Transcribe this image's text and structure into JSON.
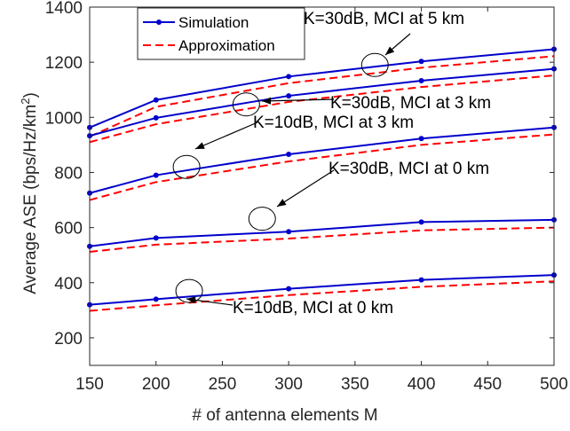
{
  "chart_data": {
    "type": "line",
    "xlabel": "# of antenna elements M",
    "ylabel_main": "Average ASE (bps/Hz/km",
    "ylabel_sup": "2",
    "ylabel_end": ")",
    "xlim": [
      150,
      500
    ],
    "ylim": [
      100,
      1400
    ],
    "xticks": [
      150,
      200,
      250,
      300,
      350,
      400,
      450,
      500
    ],
    "yticks": [
      200,
      400,
      600,
      800,
      1000,
      1200,
      1400
    ],
    "grid": false,
    "legend_position": "top-left",
    "legend": [
      {
        "label": "Simulation",
        "color": "#0000cc",
        "style": "solid-marker"
      },
      {
        "label": "Approximation",
        "color": "#ff0000",
        "style": "dashed"
      }
    ],
    "x": [
      150,
      200,
      300,
      400,
      500
    ],
    "series": [
      {
        "group": "K=30dB, MCI at 5 km",
        "simulation": [
          963,
          1063,
          1148,
          1203,
          1247
        ],
        "approximation": [
          930,
          1038,
          1124,
          1180,
          1222
        ]
      },
      {
        "group": "K=30dB, MCI at 3 km",
        "simulation": [
          933,
          998,
          1078,
          1133,
          1176
        ],
        "approximation": [
          910,
          975,
          1056,
          1110,
          1152
        ]
      },
      {
        "group": "K=10dB, MCI at 3 km",
        "simulation": [
          725,
          790,
          866,
          923,
          963
        ],
        "approximation": [
          700,
          765,
          840,
          900,
          938
        ]
      },
      {
        "group": "K=30dB, MCI at 0 km",
        "simulation": [
          532,
          562,
          585,
          620,
          628
        ],
        "approximation": [
          512,
          538,
          560,
          590,
          600
        ]
      },
      {
        "group": "K=10dB, MCI at 0 km",
        "simulation": [
          320,
          340,
          378,
          410,
          428
        ],
        "approximation": [
          298,
          318,
          355,
          385,
          405
        ]
      }
    ],
    "annotations": [
      {
        "text": "K=30dB, MCI at 5 km",
        "group": "K=30dB, MCI at 5 km",
        "ellipse_x": 365,
        "ellipse_y": 1190
      },
      {
        "text": "K=30dB, MCI at 3 km",
        "group": "K=30dB, MCI at 3 km",
        "ellipse_x": 268,
        "ellipse_y": 1047
      },
      {
        "text": "K=10dB, MCI at 3 km",
        "group": "K=10dB, MCI at 3 km",
        "ellipse_x": 223,
        "ellipse_y": 820
      },
      {
        "text": "K=30dB, MCI at 0 km",
        "group": "K=30dB, MCI at 0 km",
        "ellipse_x": 280,
        "ellipse_y": 632
      },
      {
        "text": "K=10dB, MCI at 0 km",
        "group": "K=10dB, MCI at 0 km",
        "ellipse_x": 225,
        "ellipse_y": 370
      }
    ]
  }
}
